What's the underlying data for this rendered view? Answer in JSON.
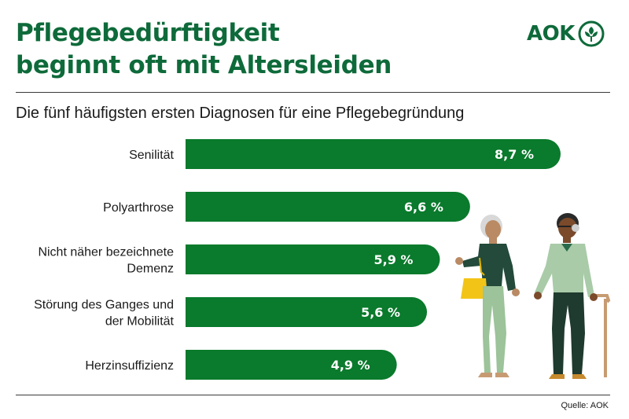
{
  "header": {
    "title_line1": "Pflegebedürftigkeit",
    "title_line2": "beginnt oft mit Altersleiden",
    "logo_text": "AOK"
  },
  "subtitle": "Die fünf häufigsten ersten Diagnosen für eine Pflegebegründung",
  "source": "Quelle: AOK",
  "colors": {
    "bar": "#0a7a2c",
    "title": "#0e6a3a"
  },
  "chart_data": {
    "type": "bar",
    "orientation": "horizontal",
    "categories": [
      [
        "Senilität"
      ],
      [
        "Polyarthrose"
      ],
      [
        "Nicht näher bezeichnete",
        "Demenz"
      ],
      [
        "Störung des Ganges und",
        "der Mobilität"
      ],
      [
        "Herzinsuffizienz"
      ]
    ],
    "values": [
      8.7,
      6.6,
      5.9,
      5.6,
      4.9
    ],
    "value_labels": [
      "8,7 %",
      "6,6 %",
      "5,9 %",
      "5,6 %",
      "4,9 %"
    ],
    "unit": "%",
    "title": "Die fünf häufigsten ersten Diagnosen für eine Pflegebegründung",
    "xlabel": "",
    "ylabel": ""
  }
}
